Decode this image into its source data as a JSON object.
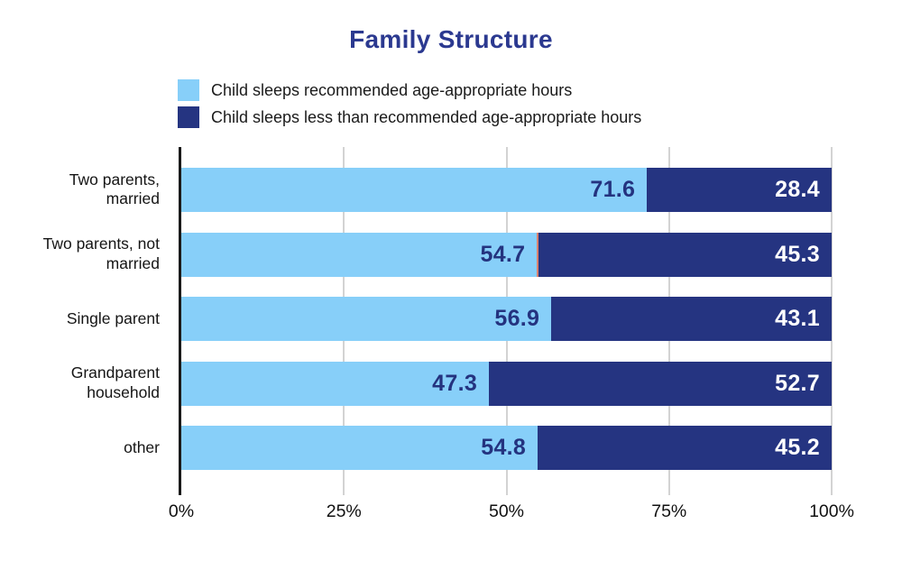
{
  "title": "Family Structure",
  "colors": {
    "title_navy": "#2B3990",
    "light_blue": "#87CFF9",
    "dark_blue": "#253481",
    "value_text_on_light": "#24337F",
    "value_text_on_dark": "#ffffff",
    "gridline": "#d3d3d3",
    "axis_line": "#1a1a1a"
  },
  "chart_data": {
    "type": "bar",
    "orientation": "horizontal",
    "stacked": true,
    "title": "Family Structure",
    "categories": [
      "Two parents,\nmarried",
      "Two parents, not\nmarried",
      "Single parent",
      "Grandparent\nhousehold",
      "other"
    ],
    "series": [
      {
        "name": "Child sleeps recommended age-appropriate hours",
        "color": "#87CFF9",
        "values": [
          71.6,
          54.7,
          56.9,
          47.3,
          54.8
        ]
      },
      {
        "name": "Child sleeps less than recommended age-appropriate hours",
        "color": "#253481",
        "values": [
          28.4,
          45.3,
          43.1,
          52.7,
          45.2
        ]
      }
    ],
    "x_ticks": [
      "0%",
      "25%",
      "50%",
      "75%",
      "100%"
    ],
    "xlim": [
      0,
      100
    ],
    "grid": true,
    "legend_position": "top-left",
    "value_labels": "inside-end, one decimal"
  }
}
